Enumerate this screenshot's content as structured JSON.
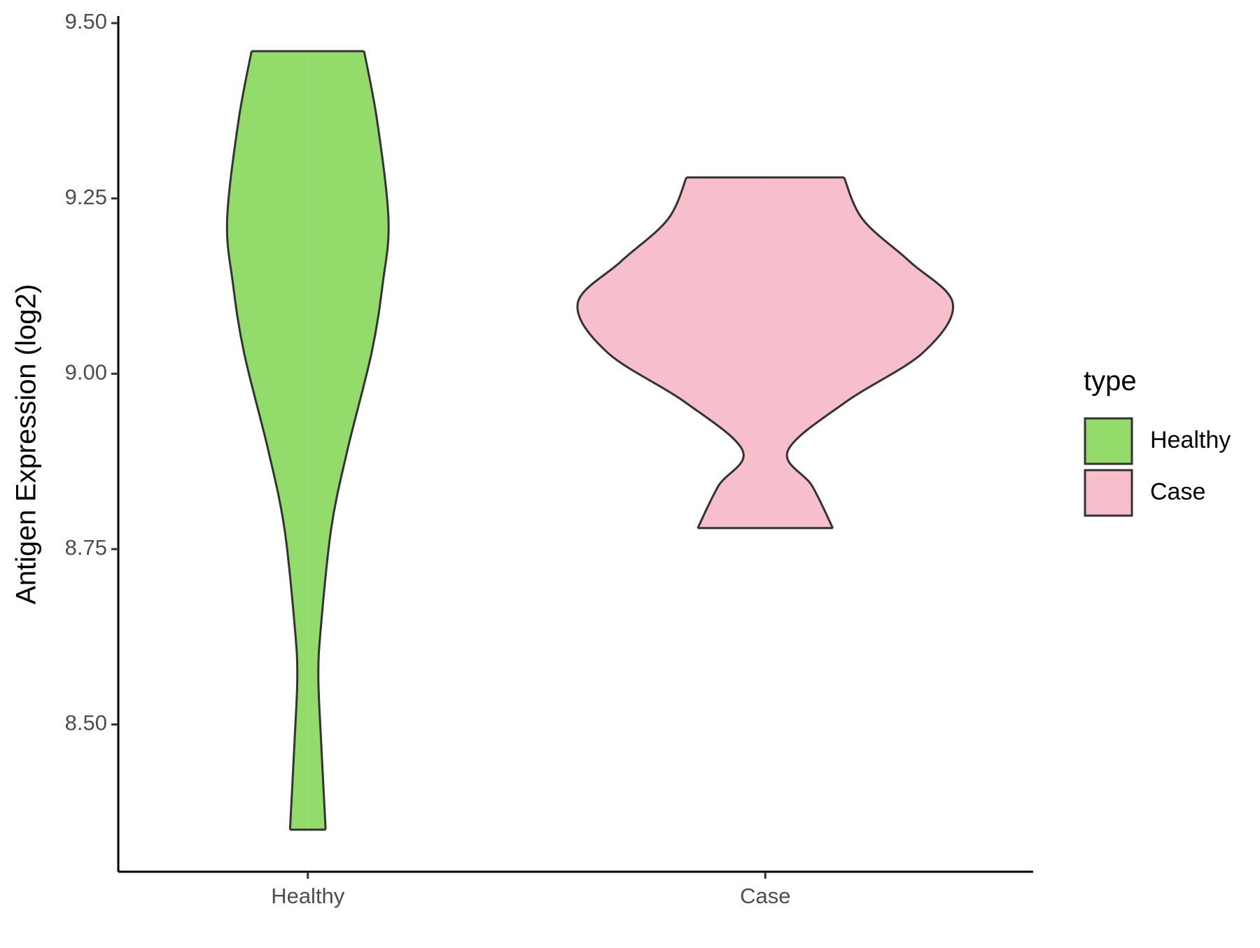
{
  "chart_data": {
    "type": "violin",
    "ylabel": "Antigen Expression (log2)",
    "categories": [
      "Healthy",
      "Case"
    ],
    "ylim": [
      8.29,
      9.51
    ],
    "yticks": [
      {
        "value": 8.5,
        "label": "8.50"
      },
      {
        "value": 8.75,
        "label": "8.75"
      },
      {
        "value": 9,
        "label": "9.00"
      },
      {
        "value": 9.25,
        "label": "9.25"
      },
      {
        "value": 9.5,
        "label": "9.50"
      }
    ],
    "legend_title": "type",
    "legend_position": "right",
    "series": [
      {
        "name": "Healthy",
        "color": "#93DB6B",
        "y": [
          9.46,
          9.36,
          9.22,
          9.13,
          9.03,
          8.89,
          8.78,
          8.64,
          8.57,
          8.48,
          8.35
        ],
        "density": [
          0.3,
          0.37,
          0.43,
          0.4,
          0.34,
          0.21,
          0.125,
          0.07,
          0.056,
          0.07,
          0.095
        ]
      },
      {
        "name": "Case",
        "color": "#F7BFCB",
        "y": [
          9.28,
          9.22,
          9.16,
          9.1,
          9.03,
          8.96,
          8.89,
          8.84,
          8.78
        ],
        "density": [
          0.42,
          0.52,
          0.77,
          1.0,
          0.84,
          0.43,
          0.12,
          0.25,
          0.36
        ]
      }
    ]
  }
}
